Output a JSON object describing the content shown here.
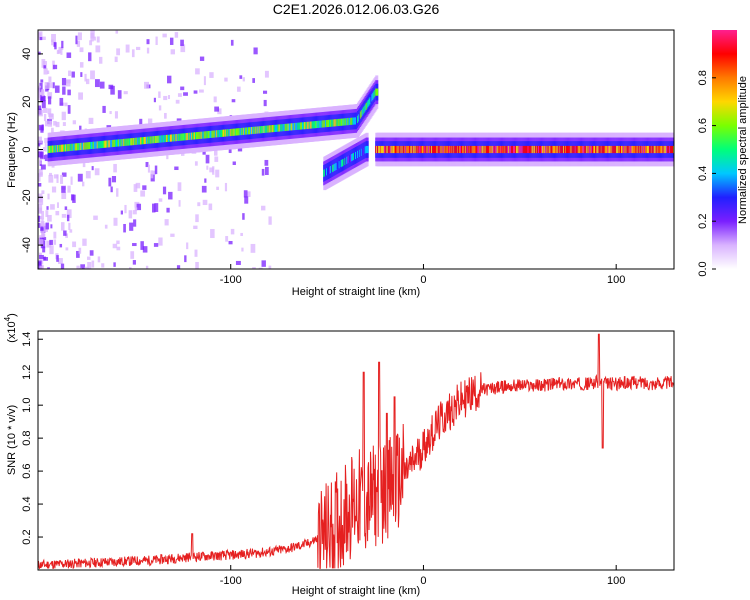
{
  "page_title": "C2E1.2026.012.06.03.G26",
  "chart_data": [
    {
      "type": "heatmap",
      "id": "spectrogram",
      "xlabel": "Height of straight line (km)",
      "ylabel": "Frequency (Hz)",
      "xlim": [
        -200,
        130
      ],
      "ylim": [
        -50,
        50
      ],
      "xticks": [
        -100,
        0,
        100
      ],
      "xtick_labels": [
        "-100",
        "0",
        "100"
      ],
      "yticks": [
        -40,
        -20,
        0,
        20,
        40
      ],
      "ytick_labels": [
        "-40",
        "-20",
        "0",
        "20",
        "40"
      ],
      "colorbar": {
        "label": "Normalized spectral amplitude",
        "range": [
          0.0,
          1.0
        ],
        "ticks": [
          0.0,
          0.2,
          0.4,
          0.6,
          0.8
        ],
        "tick_labels": [
          "0.0",
          "0.2",
          "0.4",
          "0.6",
          "0.8"
        ],
        "colormap": [
          "#ffffff",
          "#d9b3ff",
          "#7a1fff",
          "#2020ff",
          "#00c8ff",
          "#00ff7a",
          "#7aff00",
          "#ffd700",
          "#ff7a00",
          "#ff0000",
          "#ff1f8f"
        ]
      },
      "features": {
        "main_band_segments": [
          {
            "x_start": -195,
            "x_end": -35,
            "freq_start": 0,
            "freq_end": 12,
            "amplitude": 0.55
          },
          {
            "x_start": -35,
            "x_end": -25,
            "freq_start": 12,
            "freq_end": 24,
            "amplitude": 0.45
          },
          {
            "x_start": -52,
            "x_end": -30,
            "freq_start": -10,
            "freq_end": 0,
            "amplitude": 0.35
          },
          {
            "x_start": -25,
            "x_end": 130,
            "freq_start": 0,
            "freq_end": 0,
            "amplitude": 0.85
          }
        ]
      }
    },
    {
      "type": "line",
      "id": "snr",
      "xlabel": "Height of straight line (km)",
      "ylabel": "SNR (10 * v/v)",
      "yscale_label": "(x10",
      "yscale_exponent": "4",
      "xlim": [
        -200,
        130
      ],
      "ylim": [
        0,
        1.45
      ],
      "xticks": [
        -100,
        0,
        100
      ],
      "xtick_labels": [
        "-100",
        "0",
        "100"
      ],
      "yticks": [
        0.2,
        0.4,
        0.6,
        0.8,
        1.0,
        1.2,
        1.4
      ],
      "ytick_labels": [
        "0.2",
        "0.4",
        "0.6",
        "0.8",
        "1.0",
        "1.2",
        "1.4"
      ],
      "line_color": "#e52020",
      "series": [
        {
          "name": "SNR",
          "x": [
            -200,
            -180,
            -160,
            -140,
            -120,
            -100,
            -80,
            -70,
            -60,
            -50,
            -45,
            -40,
            -35,
            -30,
            -25,
            -20,
            -15,
            -10,
            -5,
            0,
            5,
            10,
            15,
            20,
            25,
            30,
            40,
            50,
            60,
            70,
            80,
            85,
            90,
            92,
            95,
            100,
            110,
            120,
            130
          ],
          "values": [
            0.03,
            0.04,
            0.05,
            0.06,
            0.08,
            0.09,
            0.11,
            0.13,
            0.16,
            0.22,
            0.28,
            0.36,
            0.42,
            0.4,
            0.45,
            0.48,
            0.52,
            0.58,
            0.66,
            0.75,
            0.84,
            0.92,
            0.98,
            1.03,
            1.07,
            1.09,
            1.11,
            1.12,
            1.12,
            1.13,
            1.13,
            1.13,
            1.14,
            1.14,
            1.13,
            1.13,
            1.14,
            1.13,
            1.14
          ]
        }
      ],
      "spikes": [
        {
          "x": -120,
          "y": 0.22
        },
        {
          "x": -31,
          "y": 1.2
        },
        {
          "x": -23,
          "y": 1.26
        },
        {
          "x": -19,
          "y": 0.95
        },
        {
          "x": -15,
          "y": 1.05
        },
        {
          "x": 91,
          "y": 1.43
        },
        {
          "x": 93,
          "y": 0.74
        }
      ]
    }
  ]
}
